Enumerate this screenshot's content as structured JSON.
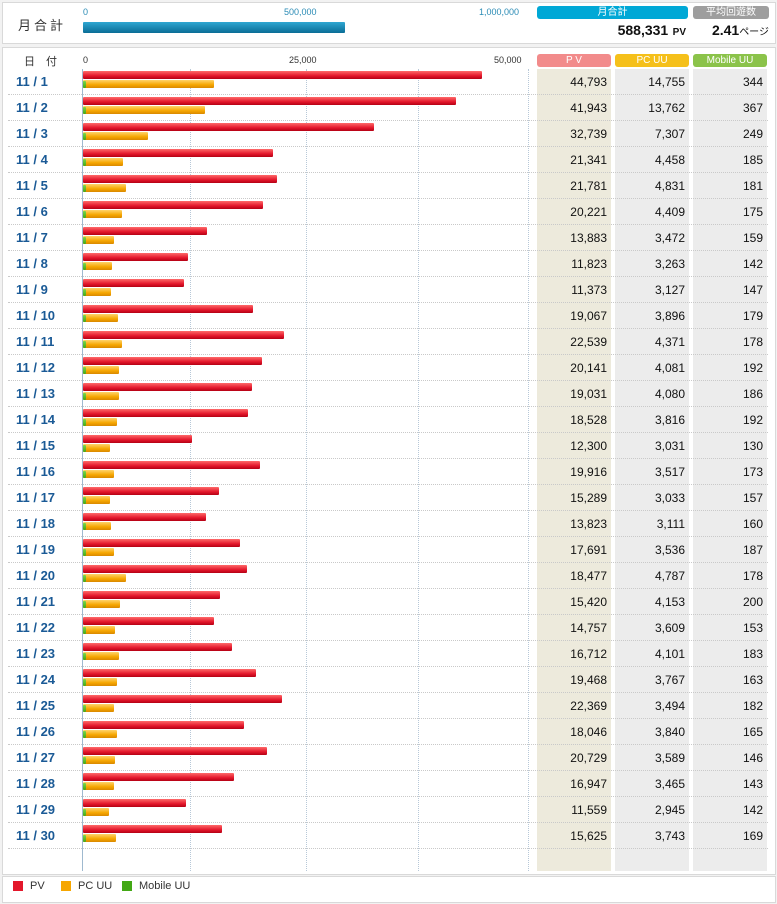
{
  "summary": {
    "label": "月合計",
    "axis_ticks": [
      "0",
      "500,000",
      "1,000,000"
    ],
    "monthly_total_label": "月合計",
    "monthly_total_value": "588,331",
    "monthly_total_unit": "PV",
    "avg_label": "平均回遊数",
    "avg_value": "2.41",
    "avg_unit": "ページ"
  },
  "table": {
    "date_header": "日 付",
    "axis_ticks": [
      "0",
      "25,000",
      "50,000"
    ],
    "col_pv": "P V",
    "col_pcuu": "PC UU",
    "col_mobile": "Mobile UU"
  },
  "legend": {
    "pv": "PV",
    "pcuu": "PC UU",
    "mobile": "Mobile UU"
  },
  "colors": {
    "pv": "#e3172b",
    "pcuu": "#f6a600",
    "mobile": "#43a815",
    "total_bar": "#0a7ea8",
    "hdr_pv": "#f28b8b",
    "hdr_pcuu": "#f5c01a",
    "hdr_mobile": "#8bc34a",
    "hdr_total": "#00a8d6",
    "hdr_avg": "#9e9e9e"
  },
  "chart_data": {
    "type": "bar",
    "orientation": "horizontal",
    "xlim": [
      0,
      50000
    ],
    "categories": [
      "11 / 1",
      "11 / 2",
      "11 / 3",
      "11 / 4",
      "11 / 5",
      "11 / 6",
      "11 / 7",
      "11 / 8",
      "11 / 9",
      "11 / 10",
      "11 / 11",
      "11 / 12",
      "11 / 13",
      "11 / 14",
      "11 / 15",
      "11 / 16",
      "11 / 17",
      "11 / 18",
      "11 / 19",
      "11 / 20",
      "11 / 21",
      "11 / 22",
      "11 / 23",
      "11 / 24",
      "11 / 25",
      "11 / 26",
      "11 / 27",
      "11 / 28",
      "11 / 29",
      "11 / 30"
    ],
    "series": [
      {
        "name": "PV",
        "values": [
          "44,793",
          "41,943",
          "32,739",
          "21,341",
          "21,781",
          "20,221",
          "13,883",
          "11,823",
          "11,373",
          "19,067",
          "22,539",
          "20,141",
          "19,031",
          "18,528",
          "12,300",
          "19,916",
          "15,289",
          "13,823",
          "17,691",
          "18,477",
          "15,420",
          "14,757",
          "16,712",
          "19,468",
          "22,369",
          "18,046",
          "20,729",
          "16,947",
          "11,559",
          "15,625"
        ]
      },
      {
        "name": "PC UU",
        "values": [
          "14,755",
          "13,762",
          "7,307",
          "4,458",
          "4,831",
          "4,409",
          "3,472",
          "3,263",
          "3,127",
          "3,896",
          "4,371",
          "4,081",
          "4,080",
          "3,816",
          "3,031",
          "3,517",
          "3,033",
          "3,111",
          "3,536",
          "4,787",
          "4,153",
          "3,609",
          "4,101",
          "3,767",
          "3,494",
          "3,840",
          "3,589",
          "3,465",
          "2,945",
          "3,743"
        ]
      },
      {
        "name": "Mobile UU",
        "values": [
          "344",
          "367",
          "249",
          "185",
          "181",
          "175",
          "159",
          "142",
          "147",
          "179",
          "178",
          "192",
          "186",
          "192",
          "130",
          "173",
          "157",
          "160",
          "187",
          "178",
          "200",
          "153",
          "183",
          "163",
          "182",
          "165",
          "146",
          "143",
          "142",
          "169"
        ]
      }
    ],
    "total_bar": {
      "xlim": [
        0,
        1000000
      ],
      "value": 588331
    }
  }
}
